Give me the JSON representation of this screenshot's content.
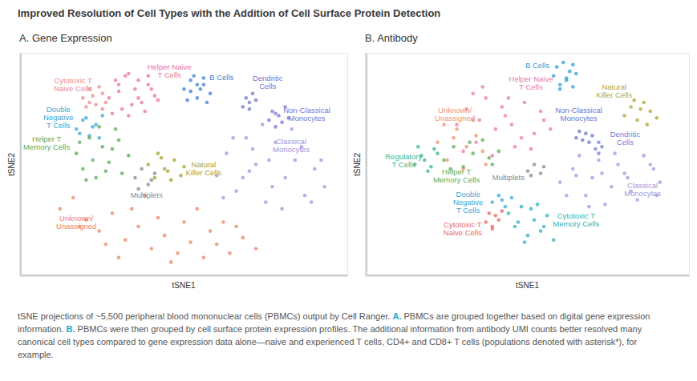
{
  "title": "Improved Resolution of Cell Types with the Addition of Cell Surface Protein Detection",
  "chart_data": [
    {
      "type": "scatter",
      "title": "A. Gene Expression",
      "xlabel": "tSNE1",
      "ylabel": "tSNE2",
      "xlim": [
        0,
        100
      ],
      "ylim": [
        0,
        100
      ],
      "tick_labels": false,
      "grid": false,
      "marker": "circle",
      "series": [
        {
          "name": "Helper Naive\nT Cells",
          "color": "#e8749a",
          "label_x": 45.5,
          "label_y": 92,
          "x": [
            27,
            29,
            31,
            33,
            35,
            37,
            39,
            41,
            28,
            30,
            32,
            34,
            36,
            38,
            40,
            42,
            30,
            33,
            36,
            39
          ],
          "y": [
            80,
            88,
            75,
            91,
            84,
            78,
            86,
            81,
            73,
            83,
            90,
            77,
            88,
            74,
            84,
            79,
            86,
            72,
            80,
            90
          ]
        },
        {
          "name": "Cytotoxic T\nNaive Cells",
          "color": "#ee8a8a",
          "label_x": 16,
          "label_y": 86,
          "x": [
            19,
            21,
            23,
            25,
            20,
            22,
            24,
            26,
            21,
            25
          ],
          "y": [
            80,
            84,
            77,
            82,
            76,
            81,
            85,
            78,
            78,
            75
          ]
        },
        {
          "name": "B Cells",
          "color": "#3d7fd6",
          "label_x": 61.5,
          "label_y": 89,
          "x": [
            50,
            52,
            54,
            56,
            58,
            51,
            53,
            55,
            57,
            52,
            54,
            56
          ],
          "y": [
            84,
            88,
            80,
            86,
            82,
            79,
            90,
            84,
            78,
            83,
            86,
            89
          ]
        },
        {
          "name": "Dendritic\nCells",
          "color": "#6b79d0",
          "label_x": 75.6,
          "label_y": 87,
          "x": [
            68,
            69,
            70,
            71,
            72,
            70
          ],
          "y": [
            76,
            80,
            78,
            82,
            79,
            75
          ]
        },
        {
          "name": "Non-Classical\nMonocytes",
          "color": "#7777d0",
          "label_x": 87.6,
          "label_y": 72.7,
          "x": [
            76,
            77,
            78,
            79,
            80,
            81,
            82,
            78
          ],
          "y": [
            70,
            74,
            67,
            72,
            69,
            76,
            71,
            73
          ]
        },
        {
          "name": "Classical\nMonocytes",
          "color": "#a395dc",
          "label_x": 82.8,
          "label_y": 58.6,
          "x": [
            60,
            63,
            66,
            69,
            72,
            75,
            78,
            81,
            84,
            87,
            90,
            93,
            62,
            68,
            74,
            80,
            86,
            92,
            65,
            71,
            77,
            83,
            89,
            70,
            76
          ],
          "y": [
            45,
            55,
            38,
            62,
            50,
            33,
            60,
            44,
            52,
            36,
            48,
            40,
            35,
            44,
            68,
            30,
            58,
            52,
            62,
            57,
            40,
            66,
            33,
            47,
            52
          ]
        },
        {
          "name": "Double\nNegative\nT Cells",
          "color": "#3aa6d9",
          "label_x": 11.5,
          "label_y": 71.2,
          "x": [
            17,
            19,
            21,
            23,
            25,
            18,
            20,
            22,
            24
          ],
          "y": [
            66,
            70,
            63,
            68,
            72,
            64,
            71,
            67,
            62
          ]
        },
        {
          "name": "Helper T\nMemory Cells",
          "color": "#5aa95a",
          "label_x": 7.9,
          "label_y": 59.4,
          "x": [
            17,
            19,
            21,
            23,
            25,
            27,
            29,
            31,
            33,
            18,
            22,
            26,
            30,
            20,
            24,
            28
          ],
          "y": [
            55,
            48,
            62,
            44,
            58,
            51,
            66,
            46,
            54,
            60,
            52,
            47,
            61,
            43,
            67,
            57
          ]
        },
        {
          "name": "Natural\nKiller Cells",
          "color": "#a8a032",
          "label_x": 56,
          "label_y": 48,
          "x": [
            39,
            41,
            43,
            45,
            47,
            49,
            50,
            42,
            46,
            44
          ],
          "y": [
            50,
            44,
            53,
            47,
            52,
            45,
            49,
            55,
            43,
            48
          ]
        },
        {
          "name": "Multiplets",
          "color": "#888888",
          "label_x": 38.5,
          "label_y": 36,
          "x": [
            35,
            37,
            39,
            41,
            36,
            40
          ],
          "y": [
            44,
            48,
            41,
            46,
            39,
            43
          ]
        },
        {
          "name": "Unknown/\nUnassigned",
          "color": "#ec8466",
          "label_x": 17,
          "label_y": 23.7,
          "x": [
            12,
            16,
            20,
            24,
            28,
            32,
            36,
            40,
            44,
            48,
            52,
            56,
            60,
            64,
            68,
            72,
            18,
            26,
            34,
            42,
            50,
            58,
            66,
            30,
            46,
            54,
            38,
            62
          ],
          "y": [
            30,
            35,
            25,
            20,
            28,
            16,
            22,
            12,
            18,
            10,
            15,
            8,
            14,
            10,
            17,
            12,
            22,
            14,
            30,
            26,
            24,
            20,
            22,
            8,
            6,
            30,
            36,
            24
          ]
        }
      ]
    },
    {
      "type": "scatter",
      "title": "B. Antibody",
      "xlabel": "tSNE1",
      "ylabel": "tSNE2",
      "xlim": [
        0,
        100
      ],
      "ylim": [
        0,
        100
      ],
      "tick_labels": false,
      "grid": false,
      "marker": "circle",
      "series": [
        {
          "name": "B Cells",
          "color": "#2b9fd8",
          "label_x": 53,
          "label_y": 94.5,
          "x": [
            58,
            59,
            60,
            61,
            62,
            63,
            64,
            65,
            60,
            62,
            64
          ],
          "y": [
            90,
            94,
            86,
            96,
            89,
            92,
            85,
            91,
            84,
            88,
            95
          ]
        },
        {
          "name": "Helper Naive\nT Cells",
          "color": "#ec7b9d",
          "label_x": 51,
          "label_y": 86.5,
          "x": [
            28,
            31,
            34,
            37,
            40,
            43,
            46,
            49,
            52,
            55,
            30,
            36,
            42,
            48,
            54,
            33,
            39,
            45,
            51,
            57,
            35,
            44
          ],
          "y": [
            68,
            75,
            60,
            80,
            66,
            72,
            58,
            78,
            64,
            70,
            56,
            85,
            76,
            62,
            74,
            82,
            54,
            68,
            57,
            66,
            70,
            80
          ]
        },
        {
          "name": "Natural\nKiller Cells",
          "color": "#b2a534",
          "label_x": 76.8,
          "label_y": 83,
          "x": [
            80,
            82,
            84,
            86,
            88,
            90,
            83,
            87,
            85
          ],
          "y": [
            72,
            76,
            70,
            78,
            74,
            71,
            79,
            68,
            75
          ]
        },
        {
          "name": "Non-Classical\nMonocytes",
          "color": "#6f72cc",
          "label_x": 65.8,
          "label_y": 72.7,
          "x": [
            65,
            66,
            67,
            68,
            69,
            70
          ],
          "y": [
            62,
            65,
            61,
            64,
            60,
            63
          ]
        },
        {
          "name": "Dendritic\nCells",
          "color": "#6f80d6",
          "label_x": 80.2,
          "label_y": 61.9,
          "x": [
            71,
            72,
            73,
            72
          ],
          "y": [
            57,
            60,
            58,
            55
          ]
        },
        {
          "name": "Unknown/\nUnassigned",
          "color": "#ee9270",
          "label_x": 27.4,
          "label_y": 72.7,
          "x": [
            22,
            25,
            28,
            31,
            34,
            37,
            24,
            30,
            36,
            27,
            33
          ],
          "y": [
            60,
            52,
            66,
            58,
            63,
            50,
            68,
            48,
            56,
            62,
            70
          ]
        },
        {
          "name": "Regulatory\nT Cells",
          "color": "#40b38a",
          "label_x": 11.5,
          "label_y": 51.8,
          "x": [
            15,
            17,
            19,
            21,
            16,
            18,
            20,
            22
          ],
          "y": [
            50,
            54,
            47,
            57,
            58,
            52,
            49,
            55
          ]
        },
        {
          "name": "Helper T\nMemory Cells",
          "color": "#5aad5a",
          "label_x": 27.9,
          "label_y": 44.6,
          "x": [
            24,
            27,
            30,
            33,
            36,
            39,
            41,
            26,
            32,
            38
          ],
          "y": [
            52,
            58,
            49,
            55,
            61,
            50,
            56,
            48,
            60,
            53
          ]
        },
        {
          "name": "Multiplets",
          "color": "#888888",
          "label_x": 44,
          "label_y": 44,
          "x": [
            50,
            52,
            54,
            55,
            51
          ],
          "y": [
            47,
            50,
            46,
            49,
            45
          ]
        },
        {
          "name": "Classical\nMonocytes",
          "color": "#a897de",
          "label_x": 85.6,
          "label_y": 38.8,
          "x": [
            60,
            64,
            68,
            72,
            76,
            80,
            84,
            88,
            91,
            62,
            66,
            70,
            74,
            78,
            82,
            86,
            90,
            65,
            73,
            81,
            89,
            69,
            77
          ],
          "y": [
            42,
            48,
            36,
            52,
            40,
            46,
            34,
            50,
            42,
            36,
            54,
            44,
            32,
            50,
            38,
            54,
            36,
            45,
            46,
            44,
            48,
            31,
            55
          ]
        },
        {
          "name": "Double\nNegative\nT Cells",
          "color": "#3ca8d8",
          "label_x": 31.5,
          "label_y": 33,
          "x": [
            39,
            41,
            43,
            45,
            42
          ],
          "y": [
            33,
            36,
            31,
            35,
            34
          ]
        },
        {
          "name": "Cytotoxic T\nMemory Cells",
          "color": "#2db3b8",
          "label_x": 65,
          "label_y": 25,
          "x": [
            44,
            46,
            48,
            50,
            52,
            54,
            56,
            58,
            47,
            51,
            55,
            49,
            53
          ],
          "y": [
            28,
            22,
            31,
            18,
            25,
            20,
            27,
            16,
            24,
            30,
            22,
            15,
            32
          ]
        },
        {
          "name": "Cytotoxic T\nNaive Cells",
          "color": "#e96a5a",
          "label_x": 29.8,
          "label_y": 20.9,
          "x": [
            37,
            38,
            39,
            40,
            41,
            42,
            39
          ],
          "y": [
            24,
            28,
            22,
            27,
            25,
            29,
            21
          ]
        }
      ]
    }
  ],
  "caption": [
    "tSNE projections of ~5,500 peripheral blood mononuclear cells (PBMCs) output by Cell Ranger. ",
    "A.",
    " PBMCs are grouped together based on digital gene expression information. ",
    "B.",
    " PBMCs were then grouped by cell surface protein expression profiles. The additional information from antibody UMI counts better resolved many canonical cell types compared to gene expression data alone—naive and experienced T cells, CD4+ and CD8+ T cells (populations denoted with asterisk*), for example."
  ]
}
